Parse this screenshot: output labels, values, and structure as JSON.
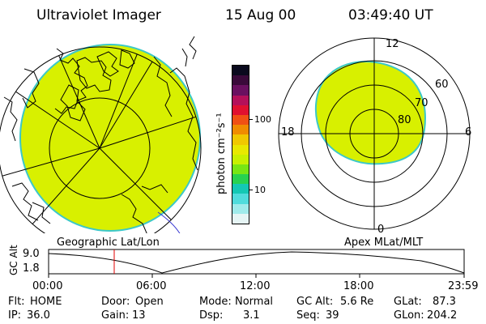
{
  "header": {
    "title": "Ultraviolet Imager",
    "date": "15 Aug 00",
    "time": "03:49:40 UT"
  },
  "left_map": {
    "label": "Geographic Lat/Lon",
    "fill_color": "#d8f000",
    "edge_color": "#3cc8c8"
  },
  "colorbar": {
    "unit_label": "photon cm⁻²s⁻¹",
    "ticks": [
      "100",
      "10"
    ],
    "colors_top_to_bottom": [
      "#0a0a1e",
      "#3a0a3a",
      "#6a1060",
      "#b4105a",
      "#e01030",
      "#f05014",
      "#f08c00",
      "#f0c800",
      "#e8e800",
      "#c8f000",
      "#78e614",
      "#28d250",
      "#14c8b4",
      "#50dcdc",
      "#a0ebeb",
      "#e6f5f5"
    ]
  },
  "right_dial": {
    "label": "Apex MLat/MLT",
    "mlt_labels": {
      "top": "12",
      "left": "18",
      "right": "6",
      "bottom": "0"
    },
    "lat_labels": [
      "60",
      "70",
      "80"
    ]
  },
  "altitude_plot": {
    "ylabel": "GC Alt",
    "yticks": [
      "9.0",
      "1.8"
    ],
    "xticks": [
      "00:00",
      "06:00",
      "12:00",
      "18:00",
      "23:59"
    ],
    "marker_time": "03:49:40",
    "marker_color": "#e00000"
  },
  "status": {
    "row1": [
      {
        "label": "Flt:",
        "value": "HOME"
      },
      {
        "label": "Door:",
        "value": "Open"
      },
      {
        "label": "Mode:",
        "value": "Normal"
      },
      {
        "label": "GC Alt:",
        "value": "5.6 Re"
      },
      {
        "label": "GLat:",
        "value": "87.3"
      }
    ],
    "row2": [
      {
        "label": "IP:",
        "value": "36.0"
      },
      {
        "label": "Gain:",
        "value": "13"
      },
      {
        "label": "Dsp:",
        "value": "3.1"
      },
      {
        "label": "Seq:",
        "value": "39"
      },
      {
        "label": "GLon:",
        "value": "204.2"
      }
    ]
  }
}
